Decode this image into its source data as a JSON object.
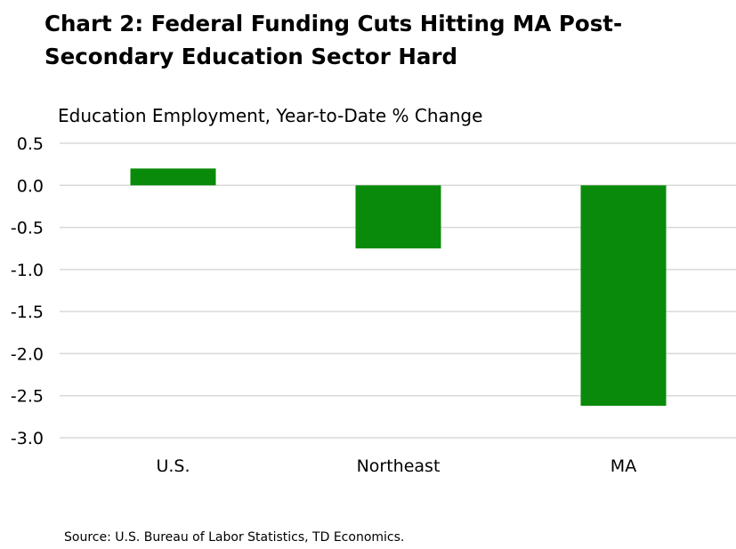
{
  "title": "Chart 2: Federal Funding Cuts Hitting MA Post-Secondary Education Sector Hard",
  "subtitle": "Education Employment, Year-to-Date % Change",
  "source": "Source: U.S. Bureau of Labor Statistics, TD Economics.",
  "colors": {
    "bar": "#0a8a0a",
    "grid": "#d9d9d9",
    "text": "#000000"
  },
  "chart_data": {
    "type": "bar",
    "title": "Chart 2: Federal Funding Cuts Hitting MA Post-Secondary Education Sector Hard",
    "ylabel": "Education Employment, Year-to-Date % Change",
    "xlabel": "",
    "categories": [
      "U.S.",
      "Northeast",
      "MA"
    ],
    "values": [
      0.2,
      -0.75,
      -2.62
    ],
    "ylim": [
      -3.0,
      0.5
    ],
    "yticks": [
      0.5,
      0.0,
      -0.5,
      -1.0,
      -1.5,
      -2.0,
      -2.5,
      -3.0
    ],
    "ytick_labels": [
      "0.5",
      "0.0",
      "-0.5",
      "-1.0",
      "-1.5",
      "-2.0",
      "-2.5",
      "-3.0"
    ],
    "grid": true,
    "legend": "none"
  }
}
